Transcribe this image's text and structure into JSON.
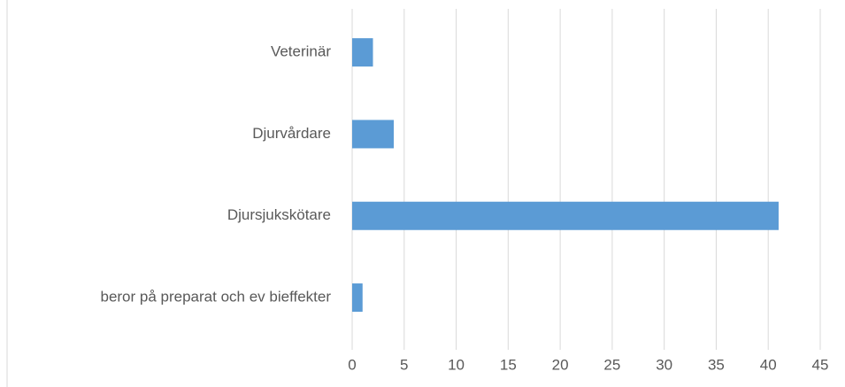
{
  "chart_data": {
    "type": "bar",
    "orientation": "horizontal",
    "categories": [
      "Veterinär",
      "Djurvårdare",
      "Djursjukskötare",
      "beror på preparat och ev bieffekter"
    ],
    "values": [
      2,
      4,
      41,
      1
    ],
    "color": "#5b9bd5",
    "xlim": [
      0,
      45
    ],
    "xticks": [
      0,
      5,
      10,
      15,
      20,
      25,
      30,
      35,
      40,
      45
    ],
    "grid": true
  }
}
